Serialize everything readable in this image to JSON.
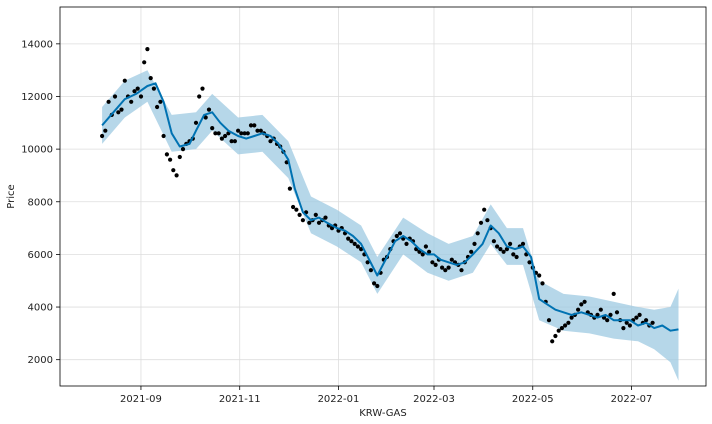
{
  "chart_data": {
    "type": "line",
    "title": "",
    "xlabel": "KRW-GAS",
    "ylabel": "Price",
    "x_ticks": [
      "2021-09",
      "2021-11",
      "2022-01",
      "2022-03",
      "2022-05",
      "2022-07"
    ],
    "y_ticks": [
      2000,
      4000,
      6000,
      8000,
      10000,
      12000,
      14000
    ],
    "xlim": [
      "2021-07-13",
      "2022-08-16"
    ],
    "ylim": [
      1000,
      15400
    ],
    "grid": true,
    "legend": "none",
    "colors": {
      "observed": "#000000",
      "forecast": "#0072B2",
      "interval": "#9ecae1"
    },
    "series": [
      {
        "role": "forecast_line",
        "x": [
          "2021-08-08",
          "2021-08-15",
          "2021-08-22",
          "2021-08-29",
          "2021-09-05",
          "2021-09-10",
          "2021-09-15",
          "2021-09-20",
          "2021-09-25",
          "2021-10-01",
          "2021-10-05",
          "2021-10-10",
          "2021-10-15",
          "2021-10-20",
          "2021-10-25",
          "2021-10-31",
          "2021-11-05",
          "2021-11-10",
          "2021-11-15",
          "2021-11-20",
          "2021-11-25",
          "2021-12-01",
          "2021-12-05",
          "2021-12-10",
          "2021-12-15",
          "2021-12-20",
          "2021-12-25",
          "2021-12-31",
          "2022-01-05",
          "2022-01-10",
          "2022-01-15",
          "2022-01-20",
          "2022-01-25",
          "2022-01-31",
          "2022-02-05",
          "2022-02-10",
          "2022-02-15",
          "2022-02-20",
          "2022-02-25",
          "2022-03-01",
          "2022-03-05",
          "2022-03-10",
          "2022-03-15",
          "2022-03-20",
          "2022-03-25",
          "2022-03-31",
          "2022-04-05",
          "2022-04-10",
          "2022-04-15",
          "2022-04-20",
          "2022-04-25",
          "2022-04-30",
          "2022-05-05",
          "2022-05-10",
          "2022-05-15",
          "2022-05-20",
          "2022-05-25",
          "2022-05-31",
          "2022-06-05",
          "2022-06-10",
          "2022-06-15",
          "2022-06-20",
          "2022-06-25",
          "2022-06-30",
          "2022-07-05",
          "2022-07-10",
          "2022-07-15",
          "2022-07-20",
          "2022-07-25",
          "2022-07-30"
        ],
        "y": [
          10900,
          11400,
          11900,
          12100,
          12400,
          12500,
          11800,
          10600,
          10100,
          10200,
          10700,
          11300,
          11400,
          11000,
          10700,
          10500,
          10400,
          10500,
          10600,
          10500,
          10200,
          9600,
          8500,
          7600,
          7300,
          7400,
          7200,
          7000,
          6900,
          6700,
          6400,
          5800,
          5200,
          5900,
          6500,
          6700,
          6500,
          6200,
          6000,
          6000,
          5800,
          5700,
          5600,
          5700,
          6000,
          6400,
          7100,
          6800,
          6300,
          6200,
          6300,
          5900,
          4300,
          4100,
          3900,
          3800,
          3700,
          3800,
          3700,
          3600,
          3700,
          3500,
          3500,
          3500,
          3300,
          3400,
          3200,
          3300,
          3100,
          3150
        ]
      },
      {
        "role": "uncertainty_upper",
        "x": [
          "2021-08-08",
          "2021-08-22",
          "2021-09-05",
          "2021-09-20",
          "2021-10-05",
          "2021-10-15",
          "2021-10-31",
          "2021-11-15",
          "2021-12-01",
          "2021-12-15",
          "2021-12-31",
          "2022-01-15",
          "2022-01-25",
          "2022-02-10",
          "2022-02-25",
          "2022-03-10",
          "2022-03-25",
          "2022-04-05",
          "2022-04-15",
          "2022-04-25",
          "2022-05-05",
          "2022-05-20",
          "2022-06-05",
          "2022-06-20",
          "2022-07-05",
          "2022-07-15",
          "2022-07-25",
          "2022-07-30"
        ],
        "y": [
          11600,
          12600,
          13000,
          11300,
          11400,
          12100,
          11200,
          11300,
          10300,
          8200,
          7700,
          7100,
          5900,
          7400,
          6800,
          6400,
          6700,
          7900,
          7000,
          7000,
          5000,
          4500,
          4400,
          4200,
          4000,
          3900,
          4000,
          4700
        ]
      },
      {
        "role": "uncertainty_lower",
        "x": [
          "2021-08-08",
          "2021-08-22",
          "2021-09-05",
          "2021-09-20",
          "2021-10-05",
          "2021-10-15",
          "2021-10-31",
          "2021-11-15",
          "2021-12-01",
          "2021-12-15",
          "2021-12-31",
          "2022-01-15",
          "2022-01-25",
          "2022-02-10",
          "2022-02-25",
          "2022-03-10",
          "2022-03-25",
          "2022-04-05",
          "2022-04-15",
          "2022-04-25",
          "2022-05-05",
          "2022-05-20",
          "2022-06-05",
          "2022-06-20",
          "2022-07-05",
          "2022-07-15",
          "2022-07-25",
          "2022-07-30"
        ],
        "y": [
          10200,
          11200,
          11800,
          9900,
          10000,
          10700,
          9800,
          9900,
          8900,
          6800,
          6300,
          5700,
          4500,
          6000,
          5300,
          5000,
          5300,
          6400,
          5600,
          5600,
          3500,
          3100,
          3000,
          2800,
          2700,
          2400,
          1900,
          1200
        ]
      },
      {
        "role": "observed_points",
        "x": [
          "2021-08-08",
          "2021-08-10",
          "2021-08-12",
          "2021-08-14",
          "2021-08-16",
          "2021-08-18",
          "2021-08-20",
          "2021-08-22",
          "2021-08-24",
          "2021-08-26",
          "2021-08-28",
          "2021-08-30",
          "2021-09-01",
          "2021-09-03",
          "2021-09-05",
          "2021-09-07",
          "2021-09-09",
          "2021-09-11",
          "2021-09-13",
          "2021-09-15",
          "2021-09-17",
          "2021-09-19",
          "2021-09-21",
          "2021-09-23",
          "2021-09-25",
          "2021-09-27",
          "2021-09-29",
          "2021-10-01",
          "2021-10-03",
          "2021-10-05",
          "2021-10-07",
          "2021-10-09",
          "2021-10-11",
          "2021-10-13",
          "2021-10-15",
          "2021-10-17",
          "2021-10-19",
          "2021-10-21",
          "2021-10-23",
          "2021-10-25",
          "2021-10-27",
          "2021-10-29",
          "2021-10-31",
          "2021-11-02",
          "2021-11-04",
          "2021-11-06",
          "2021-11-08",
          "2021-11-10",
          "2021-11-12",
          "2021-11-14",
          "2021-11-16",
          "2021-11-18",
          "2021-11-20",
          "2021-11-22",
          "2021-11-24",
          "2021-11-26",
          "2021-11-28",
          "2021-11-30",
          "2021-12-02",
          "2021-12-04",
          "2021-12-06",
          "2021-12-08",
          "2021-12-10",
          "2021-12-12",
          "2021-12-14",
          "2021-12-16",
          "2021-12-18",
          "2021-12-20",
          "2021-12-22",
          "2021-12-24",
          "2021-12-26",
          "2021-12-28",
          "2021-12-30",
          "2022-01-01",
          "2022-01-03",
          "2022-01-05",
          "2022-01-07",
          "2022-01-09",
          "2022-01-11",
          "2022-01-13",
          "2022-01-15",
          "2022-01-17",
          "2022-01-19",
          "2022-01-21",
          "2022-01-23",
          "2022-01-25",
          "2022-01-27",
          "2022-01-29",
          "2022-01-31",
          "2022-02-02",
          "2022-02-04",
          "2022-02-06",
          "2022-02-08",
          "2022-02-10",
          "2022-02-12",
          "2022-02-14",
          "2022-02-16",
          "2022-02-18",
          "2022-02-20",
          "2022-02-22",
          "2022-02-24",
          "2022-02-26",
          "2022-02-28",
          "2022-03-02",
          "2022-03-04",
          "2022-03-06",
          "2022-03-08",
          "2022-03-10",
          "2022-03-12",
          "2022-03-14",
          "2022-03-16",
          "2022-03-18",
          "2022-03-20",
          "2022-03-22",
          "2022-03-24",
          "2022-03-26",
          "2022-03-28",
          "2022-03-30",
          "2022-04-01",
          "2022-04-03",
          "2022-04-05",
          "2022-04-07",
          "2022-04-09",
          "2022-04-11",
          "2022-04-13",
          "2022-04-15",
          "2022-04-17",
          "2022-04-19",
          "2022-04-21",
          "2022-04-23",
          "2022-04-25",
          "2022-04-27",
          "2022-04-29",
          "2022-05-01",
          "2022-05-03",
          "2022-05-05",
          "2022-05-07",
          "2022-05-09",
          "2022-05-11",
          "2022-05-13",
          "2022-05-15",
          "2022-05-17",
          "2022-05-19",
          "2022-05-21",
          "2022-05-23",
          "2022-05-25",
          "2022-05-27",
          "2022-05-29",
          "2022-05-31",
          "2022-06-02",
          "2022-06-04",
          "2022-06-06",
          "2022-06-08",
          "2022-06-10",
          "2022-06-12",
          "2022-06-14",
          "2022-06-16",
          "2022-06-18",
          "2022-06-20",
          "2022-06-22",
          "2022-06-24",
          "2022-06-26",
          "2022-06-28",
          "2022-06-30",
          "2022-07-02",
          "2022-07-04",
          "2022-07-06",
          "2022-07-08",
          "2022-07-10",
          "2022-07-12",
          "2022-07-14"
        ],
        "y": [
          10500,
          10700,
          11800,
          11300,
          12000,
          11400,
          11500,
          12600,
          12000,
          11800,
          12200,
          12300,
          12000,
          13300,
          13800,
          12700,
          12300,
          11600,
          11800,
          10500,
          9800,
          9600,
          9200,
          9000,
          9700,
          10000,
          10200,
          10300,
          10400,
          11000,
          12000,
          12300,
          11200,
          11500,
          10800,
          10600,
          10600,
          10400,
          10500,
          10600,
          10300,
          10300,
          10700,
          10600,
          10600,
          10600,
          10900,
          10900,
          10700,
          10700,
          10600,
          10500,
          10300,
          10400,
          10200,
          10100,
          9900,
          9500,
          8500,
          7800,
          7700,
          7500,
          7300,
          7600,
          7200,
          7300,
          7500,
          7200,
          7300,
          7400,
          7100,
          7000,
          7100,
          6900,
          7000,
          6800,
          6600,
          6500,
          6400,
          6300,
          6200,
          6000,
          5700,
          5400,
          4900,
          4800,
          5300,
          5800,
          5900,
          6200,
          6500,
          6700,
          6800,
          6600,
          6400,
          6600,
          6500,
          6200,
          6100,
          6000,
          6300,
          6100,
          5700,
          5600,
          5800,
          5500,
          5400,
          5500,
          5800,
          5700,
          5600,
          5400,
          5700,
          5900,
          6100,
          6400,
          6800,
          7200,
          7700,
          7300,
          7000,
          6500,
          6300,
          6200,
          6100,
          6200,
          6400,
          6000,
          5900,
          6300,
          6400,
          6000,
          5700,
          5500,
          5300,
          5200,
          4900,
          4200,
          3500,
          2700,
          2900,
          3100,
          3200,
          3300,
          3400,
          3600,
          3700,
          3900,
          4100,
          4200,
          3800,
          3700,
          3600,
          3700,
          3900,
          3600,
          3500,
          3700,
          4500,
          3800,
          3500,
          3200,
          3400,
          3300,
          3500,
          3600,
          3700,
          3400,
          3500,
          3300,
          3400
        ]
      }
    ]
  }
}
